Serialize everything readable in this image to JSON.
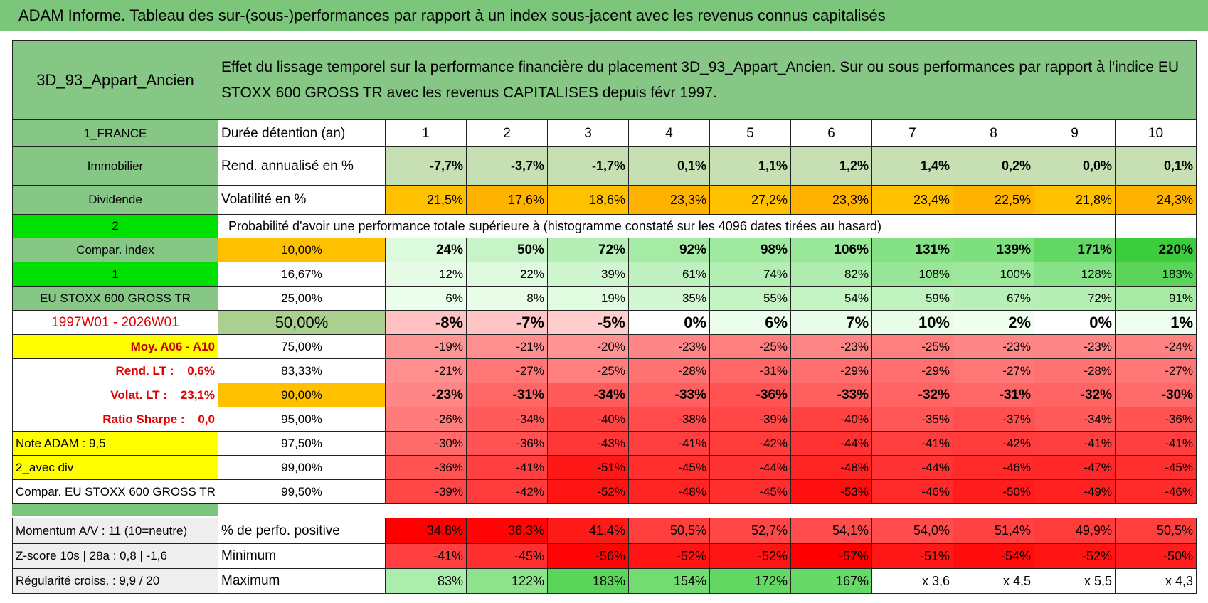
{
  "title": "ADAM Informe. Tableau des sur-(sous-)performances par rapport à un index sous-jacent avec les revenus connus capitalisés",
  "table": {
    "rows": [
      [
        "3D_93_Appart_Ancien",
        "Effet du lissage temporel sur la performance financière du placement 3D_93_Appart_Ancien. Sur ou sous performances par rapport à l'indice EU STOXX 600 GROSS TR avec les revenus CAPITALISES depuis févr 1997."
      ],
      [
        "1_FRANCE",
        "Durée détention (an)",
        "1",
        "2",
        "3",
        "4",
        "5",
        "6",
        "7",
        "8",
        "9",
        "10"
      ],
      [
        "Immobilier",
        "Rend. annualisé en %",
        "-7,7%",
        "-3,7%",
        "-1,7%",
        "0,1%",
        "1,1%",
        "1,2%",
        "1,4%",
        "0,2%",
        "0,0%",
        "0,1%"
      ],
      [
        "Dividende",
        "Volatilité en %",
        "21,5%",
        "17,6%",
        "18,6%",
        "23,3%",
        "27,2%",
        "23,3%",
        "23,4%",
        "22,5%",
        "21,8%",
        "24,3%"
      ],
      [
        "2",
        "Probabilité d'avoir une performance totale supérieure à (histogramme constaté sur les 4096 dates tirées au hasard)"
      ],
      [
        "Compar. index",
        "10,00%",
        "24%",
        "50%",
        "72%",
        "92%",
        "98%",
        "106%",
        "131%",
        "139%",
        "171%",
        "220%"
      ],
      [
        "1",
        "16,67%",
        "12%",
        "22%",
        "39%",
        "61%",
        "74%",
        "82%",
        "108%",
        "100%",
        "128%",
        "183%"
      ],
      [
        "EU STOXX 600 GROSS TR",
        "25,00%",
        "6%",
        "8%",
        "19%",
        "35%",
        "55%",
        "54%",
        "59%",
        "67%",
        "72%",
        "91%"
      ],
      [
        "1997W01 - 2026W01",
        "50,00%",
        "-8%",
        "-7%",
        "-5%",
        "0%",
        "6%",
        "7%",
        "10%",
        "2%",
        "0%",
        "1%"
      ],
      [
        "Moy. A06 - A10",
        "75,00%",
        "-19%",
        "-21%",
        "-20%",
        "-23%",
        "-25%",
        "-23%",
        "-25%",
        "-23%",
        "-23%",
        "-24%"
      ],
      [
        "Rend. LT :    0,6%",
        "83,33%",
        "-21%",
        "-27%",
        "-25%",
        "-28%",
        "-31%",
        "-29%",
        "-29%",
        "-27%",
        "-28%",
        "-27%"
      ],
      [
        "Volat. LT :    23,1%",
        "90,00%",
        "-23%",
        "-31%",
        "-34%",
        "-33%",
        "-36%",
        "-33%",
        "-32%",
        "-31%",
        "-32%",
        "-30%"
      ],
      [
        "Ratio Sharpe :    0,0",
        "95,00%",
        "-26%",
        "-34%",
        "-40%",
        "-38%",
        "-39%",
        "-40%",
        "-35%",
        "-37%",
        "-34%",
        "-36%"
      ],
      [
        "Note ADAM : 9,5",
        "97,50%",
        "-30%",
        "-36%",
        "-43%",
        "-41%",
        "-42%",
        "-44%",
        "-41%",
        "-42%",
        "-41%",
        "-41%"
      ],
      [
        "2_avec div",
        "99,00%",
        "-36%",
        "-41%",
        "-51%",
        "-45%",
        "-44%",
        "-48%",
        "-44%",
        "-46%",
        "-47%",
        "-45%"
      ],
      [
        "Compar. EU STOXX 600 GROSS TR",
        "99,50%",
        "-39%",
        "-42%",
        "-52%",
        "-48%",
        "-45%",
        "-53%",
        "-46%",
        "-50%",
        "-49%",
        "-46%"
      ],
      [
        "Momentum A/V : 11 (10=neutre)",
        "% de perfo. positive",
        "34,8%",
        "36,3%",
        "41,4%",
        "50,5%",
        "52,7%",
        "54,1%",
        "54,0%",
        "51,4%",
        "49,9%",
        "50,5%"
      ],
      [
        "Z-score 10s | 28a : 0,8 | -1,6",
        "Minimum",
        "-41%",
        "-45%",
        "-56%",
        "-52%",
        "-52%",
        "-57%",
        "-51%",
        "-54%",
        "-52%",
        "-50%"
      ],
      [
        "Régularité croiss. : 9,9 / 20",
        "Maximum",
        "83%",
        "122%",
        "183%",
        "154%",
        "172%",
        "167%",
        "x 3,6",
        "x 4,5",
        "x 5,5",
        "x 4,3"
      ]
    ]
  }
}
